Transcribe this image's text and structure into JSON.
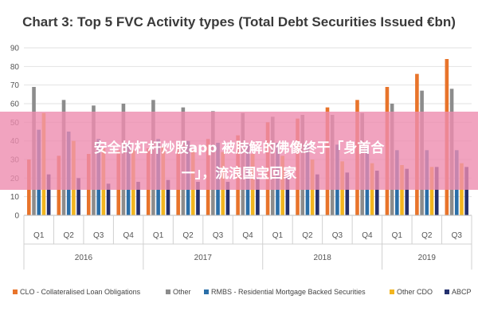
{
  "chart_data": {
    "type": "bar",
    "title": "Chart 3: Top 5 FVC Activity types (Total Debt Securities Issued €bn)",
    "ylim": [
      0,
      90
    ],
    "yticks": [
      0,
      10,
      20,
      30,
      40,
      50,
      60,
      70,
      80,
      90
    ],
    "grid": true,
    "legend_position": "bottom",
    "categories": [
      "Q1",
      "Q2",
      "Q3",
      "Q4",
      "Q1",
      "Q2",
      "Q3",
      "Q4",
      "Q1",
      "Q2",
      "Q3",
      "Q4",
      "Q1",
      "Q2",
      "Q3"
    ],
    "years": [
      {
        "label": "2016",
        "start": 0,
        "count": 4
      },
      {
        "label": "2017",
        "start": 4,
        "count": 4
      },
      {
        "label": "2018",
        "start": 8,
        "count": 4
      },
      {
        "label": "2019",
        "start": 12,
        "count": 3
      }
    ],
    "series": [
      {
        "name": "CLO - Collateralised Loan Obligations",
        "color": "#e8742b",
        "values": [
          30,
          32,
          33,
          35,
          36,
          37,
          41,
          43,
          50,
          52,
          58,
          62,
          69,
          76,
          84
        ]
      },
      {
        "name": "Other",
        "color": "#8c8c8c",
        "values": [
          69,
          62,
          59,
          60,
          62,
          58,
          56,
          55,
          53,
          54,
          54,
          55,
          60,
          67,
          68
        ]
      },
      {
        "name": "RMBS - Residential Mortgage Backed Securities",
        "color": "#2b6fa8",
        "values": [
          46,
          45,
          41,
          39,
          41,
          40,
          39,
          38,
          39,
          38,
          38,
          36,
          35,
          35,
          35
        ]
      },
      {
        "name": "Other CDO",
        "color": "#f2b51f",
        "values": [
          55,
          40,
          36,
          35,
          37,
          35,
          34,
          33,
          32,
          30,
          29,
          28,
          27,
          26,
          28
        ]
      },
      {
        "name": "ABCP",
        "color": "#24316e",
        "values": [
          22,
          20,
          17,
          18,
          19,
          18,
          18,
          20,
          21,
          22,
          23,
          24,
          25,
          26,
          26
        ]
      }
    ]
  },
  "overlay": {
    "line1": "安全的杠杆炒股app 被肢解的佛像终于「身首合",
    "line2": "一」，流浪国宝回家"
  }
}
